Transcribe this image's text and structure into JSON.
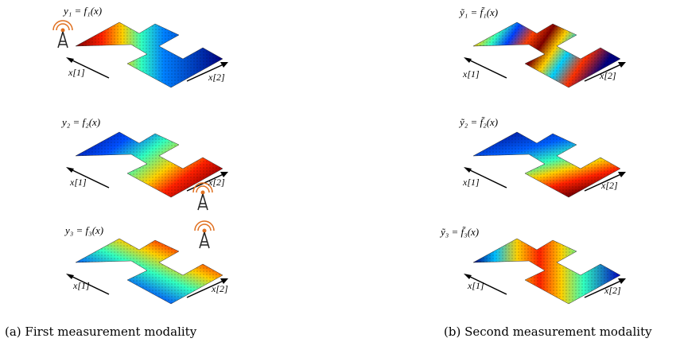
{
  "figure": {
    "captions": [
      "(a) First measurement modality",
      "(b) Second measurement modality"
    ],
    "axis_x1": "x[1]",
    "axis_x2": "x[2]",
    "panels": [
      {
        "id": "a1",
        "equation": "y₁ = f₁(x)",
        "gradient": "a1",
        "antenna": "left"
      },
      {
        "id": "a2",
        "equation": "y₂ = f₂(x)",
        "gradient": "a2",
        "antenna": "bottom"
      },
      {
        "id": "a3",
        "equation": "y₃ = f₃(x)",
        "gradient": "a3",
        "antenna": "top"
      },
      {
        "id": "b1",
        "equation": "ỹ₁ = f̃₁(x)",
        "gradient": "b1",
        "antenna": "none"
      },
      {
        "id": "b2",
        "equation": "ỹ₂ = f̃₂(x)",
        "gradient": "b2",
        "antenna": "none"
      },
      {
        "id": "b3",
        "equation": "ỹ₃ = f̃₃(x)",
        "gradient": "b3",
        "antenna": "none"
      }
    ],
    "colormap": [
      "#00007f",
      "#0000ff",
      "#00ffff",
      "#ffff00",
      "#ff0000",
      "#7f0000"
    ],
    "antenna_color": "#e07020"
  }
}
